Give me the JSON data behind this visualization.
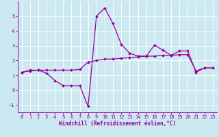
{
  "xlabel": "Windchill (Refroidissement éolien,°C)",
  "bg_color": "#cce8f0",
  "grid_color": "#ffffff",
  "line_color": "#990099",
  "spine_color": "#9900aa",
  "xlim": [
    -0.5,
    23.5
  ],
  "ylim": [
    -1.5,
    6.0
  ],
  "yticks": [
    -1,
    0,
    1,
    2,
    3,
    4,
    5
  ],
  "xticks": [
    0,
    1,
    2,
    3,
    4,
    5,
    6,
    7,
    8,
    9,
    10,
    11,
    12,
    13,
    14,
    15,
    16,
    17,
    18,
    19,
    20,
    21,
    22,
    23
  ],
  "line1_x": [
    0,
    1,
    2,
    3,
    4,
    5,
    6,
    7,
    8,
    9,
    10,
    11,
    12,
    13,
    14,
    15,
    16,
    17,
    18,
    19,
    20,
    21,
    22,
    23
  ],
  "line1_y": [
    1.2,
    1.35,
    1.35,
    1.15,
    0.65,
    0.3,
    0.3,
    0.3,
    -1.1,
    5.0,
    5.55,
    4.5,
    3.1,
    2.5,
    2.3,
    2.3,
    3.05,
    2.7,
    2.35,
    2.65,
    2.65,
    1.2,
    1.5,
    1.5
  ],
  "line2_x": [
    0,
    1,
    2,
    3,
    4,
    5,
    6,
    7,
    8,
    9,
    10,
    11,
    12,
    13,
    14,
    15,
    16,
    17,
    18,
    19,
    20,
    21,
    22,
    23
  ],
  "line2_y": [
    1.2,
    1.3,
    1.35,
    1.35,
    1.35,
    1.35,
    1.35,
    1.4,
    1.9,
    2.0,
    2.1,
    2.1,
    2.15,
    2.2,
    2.25,
    2.3,
    2.3,
    2.35,
    2.35,
    2.4,
    2.4,
    1.3,
    1.5,
    1.5
  ],
  "tick_fontsize": 5,
  "xlabel_fontsize": 5.5
}
